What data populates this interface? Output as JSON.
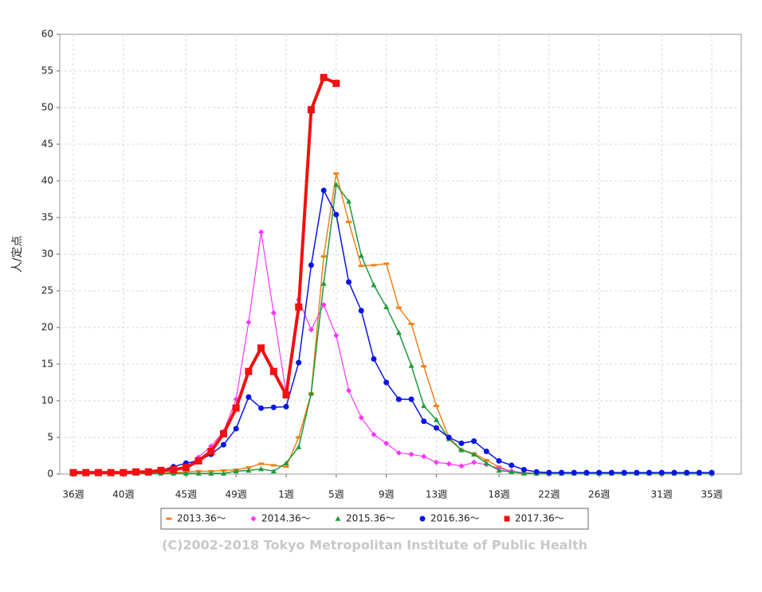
{
  "chart_data": {
    "type": "line",
    "y_label": "人/定点",
    "credit": "(C)2002-2018 Tokyo Metropolitan Institute of Public Health",
    "categories": [
      "36週",
      null,
      null,
      null,
      "40週",
      null,
      null,
      null,
      null,
      "45週",
      null,
      null,
      null,
      "49週",
      null,
      null,
      null,
      "1週",
      null,
      null,
      null,
      "5週",
      null,
      null,
      null,
      "9週",
      null,
      null,
      null,
      "13週",
      null,
      null,
      null,
      null,
      "18週",
      null,
      null,
      null,
      "22週",
      null,
      null,
      null,
      "26週",
      null,
      null,
      null,
      null,
      "31週",
      null,
      null,
      null,
      "35週"
    ],
    "ylim": [
      0,
      60
    ],
    "yticks": [
      0,
      5,
      10,
      15,
      20,
      25,
      30,
      35,
      40,
      45,
      50,
      55,
      60
    ],
    "grid": true,
    "series": [
      {
        "name": "2013.36～",
        "color": "#f57f17",
        "marker": "dash",
        "width": 1.5,
        "values": [
          0.1,
          0.1,
          0.1,
          0.1,
          0.1,
          0.1,
          0.1,
          0.2,
          0.2,
          0.3,
          0.4,
          0.4,
          0.5,
          0.6,
          0.9,
          1.4,
          1.2,
          1.0,
          5.0,
          11.0,
          29.7,
          41.0,
          34.4,
          28.4,
          28.5,
          28.7,
          22.7,
          20.5,
          14.7,
          9.3,
          5.0,
          3.3,
          2.8,
          1.9,
          1.0,
          0.3,
          0.1,
          0.1,
          0.1,
          0.1,
          0.1,
          0.1,
          0.1,
          0.1,
          0.1,
          0.1,
          0.1,
          0.1,
          0.1,
          0.1,
          0.1,
          0.1
        ]
      },
      {
        "name": "2014.36～",
        "color": "#ff33ff",
        "marker": "diamond",
        "width": 1.2,
        "values": [
          0.2,
          0.2,
          0.2,
          0.2,
          0.2,
          0.3,
          0.3,
          0.4,
          0.6,
          0.9,
          2.3,
          3.8,
          5.8,
          10.2,
          20.7,
          33.0,
          22.0,
          11.0,
          23.8,
          19.7,
          23.1,
          18.9,
          11.4,
          7.7,
          5.4,
          4.2,
          2.9,
          2.7,
          2.4,
          1.6,
          1.4,
          1.1,
          1.6,
          1.3,
          0.8,
          0.4,
          0.2,
          0.1,
          0.1,
          0.1,
          0.1,
          0.1,
          0.1,
          0.1,
          0.1,
          0.1,
          0.1,
          0.1,
          0.1,
          0.1,
          0.1,
          0.1
        ]
      },
      {
        "name": "2015.36～",
        "color": "#1e9a3a",
        "marker": "triangle",
        "width": 1.5,
        "values": [
          0.1,
          0.1,
          0.1,
          0.1,
          0.1,
          0.1,
          0.1,
          0.1,
          0.1,
          0.1,
          0.1,
          0.1,
          0.1,
          0.4,
          0.5,
          0.7,
          0.4,
          1.5,
          3.7,
          11.0,
          26.0,
          39.5,
          37.2,
          29.8,
          25.8,
          22.8,
          19.3,
          14.8,
          9.3,
          7.4,
          4.8,
          3.3,
          2.7,
          1.5,
          0.5,
          0.3,
          0.1,
          0.1,
          0.1,
          0.1,
          0.1,
          0.1,
          0.1,
          0.1,
          0.1,
          0.1,
          0.1,
          0.1,
          0.1,
          0.1,
          0.1,
          0.1
        ]
      },
      {
        "name": "2016.36～",
        "color": "#0a14e6",
        "marker": "circle",
        "width": 1.5,
        "values": [
          0.2,
          0.2,
          0.2,
          0.2,
          0.3,
          0.3,
          0.4,
          0.5,
          1.0,
          1.5,
          1.8,
          2.7,
          4.0,
          6.2,
          10.5,
          9.0,
          9.1,
          9.2,
          15.2,
          28.5,
          38.7,
          35.4,
          26.2,
          22.3,
          15.7,
          12.5,
          10.2,
          10.2,
          7.2,
          6.3,
          5.0,
          4.2,
          4.5,
          3.1,
          1.8,
          1.2,
          0.6,
          0.3,
          0.2,
          0.2,
          0.2,
          0.2,
          0.2,
          0.2,
          0.2,
          0.2,
          0.2,
          0.2,
          0.2,
          0.2,
          0.2,
          0.2
        ]
      },
      {
        "name": "2017.36～",
        "color": "#f21010",
        "marker": "square",
        "width": 4,
        "values": [
          0.2,
          0.2,
          0.2,
          0.2,
          0.2,
          0.3,
          0.3,
          0.5,
          0.6,
          0.9,
          1.8,
          3.1,
          5.5,
          9.0,
          14.0,
          17.2,
          14.0,
          10.8,
          22.8,
          49.7,
          54.1,
          53.3,
          null,
          null,
          null,
          null,
          null,
          null,
          null,
          null,
          null,
          null,
          null,
          null,
          null,
          null,
          null,
          null,
          null,
          null,
          null,
          null,
          null,
          null,
          null,
          null,
          null,
          null,
          null,
          null,
          null,
          null
        ]
      }
    ]
  }
}
